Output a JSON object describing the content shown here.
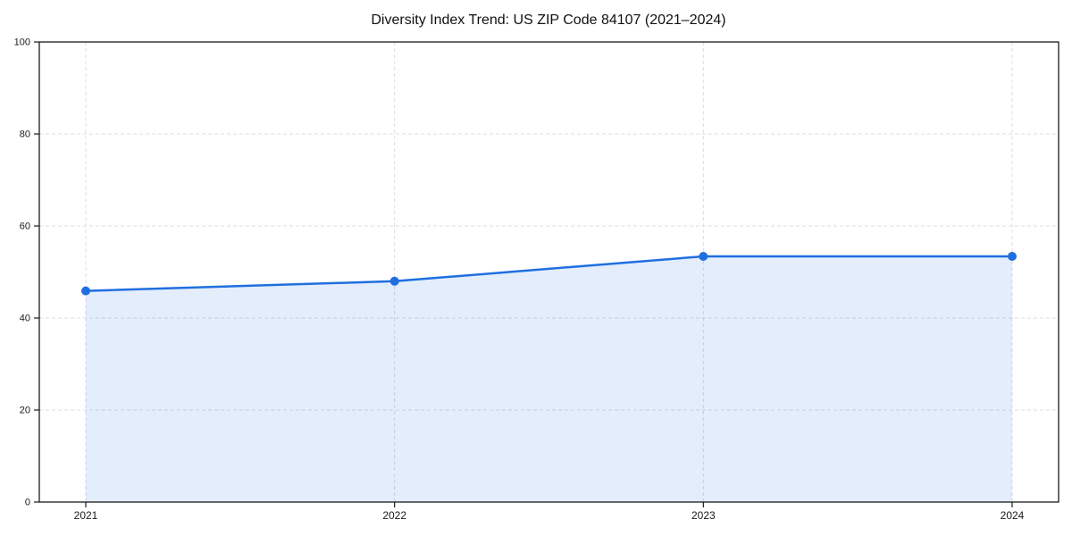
{
  "page": {
    "background_color": "#ffffff"
  },
  "chart_data": {
    "type": "area",
    "title": "Diversity Index Trend: US ZIP Code 84107 (2021–2024)",
    "categories": [
      "2021",
      "2022",
      "2023",
      "2024"
    ],
    "series": [
      {
        "name": "Diversity Index",
        "values": [
          45.9,
          48.0,
          53.4,
          53.4
        ]
      }
    ],
    "xlabel": "",
    "ylabel": "",
    "ylim": [
      0,
      100
    ],
    "yticks": [
      0,
      20,
      40,
      60,
      80,
      100
    ],
    "grid": "dashed, both axes",
    "legend": false,
    "colors": {
      "line": "#1f6fe0",
      "marker": "#1f6fe0",
      "fill": "#1f6fe0",
      "fill_opacity": 0.12,
      "grid": "#dddddd",
      "axis": "#1a1a1a",
      "tick_label": "#1a1a1a",
      "title": "#111111"
    }
  }
}
